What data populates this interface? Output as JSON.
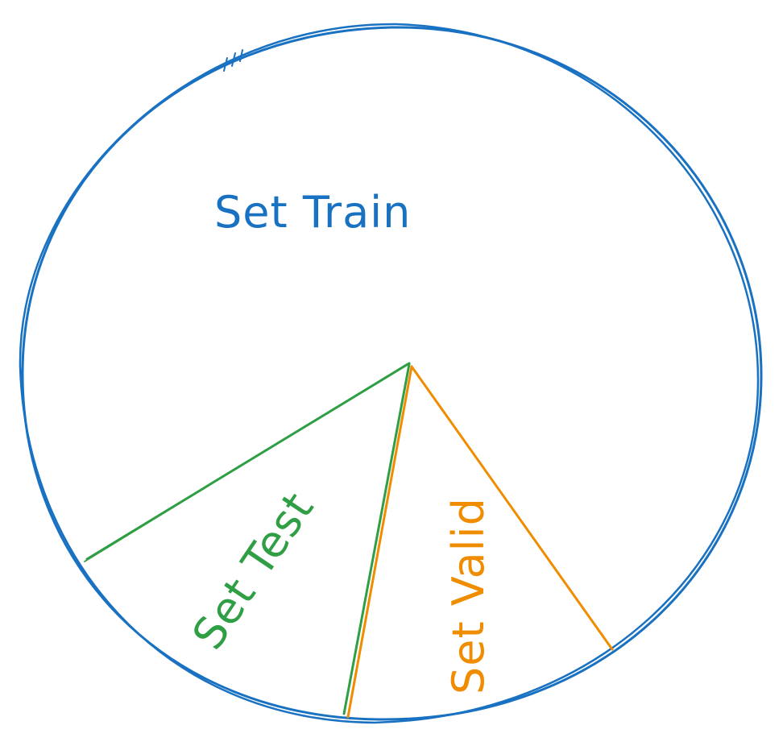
{
  "diagram": {
    "colors": {
      "circle": "#1971c2",
      "test": "#2f9e44",
      "valid": "#f08c00"
    },
    "labels": {
      "train": "Set Train",
      "test": "Set Test",
      "valid": "Set Valid"
    }
  }
}
